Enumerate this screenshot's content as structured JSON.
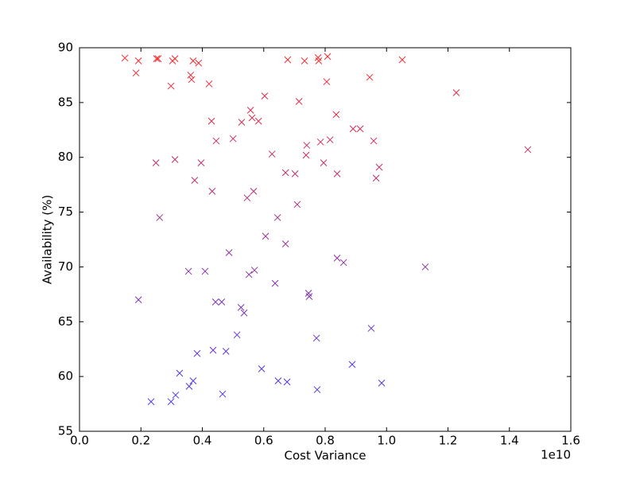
{
  "chart_data": {
    "type": "scatter",
    "xlabel": "Cost Variance",
    "ylabel": "Availability (%)",
    "x_offset_label": "1e10",
    "x": [
      0.148,
      0.192,
      0.184,
      0.251,
      0.256,
      0.303,
      0.311,
      0.298,
      0.37,
      0.388,
      0.362,
      0.365,
      0.422,
      0.678,
      0.733,
      0.777,
      0.779,
      0.808,
      1.051,
      0.945,
      0.805,
      1.227,
      0.603,
      0.715,
      0.557,
      0.528,
      0.562,
      0.583,
      0.43,
      0.836,
      0.891,
      0.914,
      0.5,
      0.445,
      0.74,
      0.785,
      0.816,
      0.958,
      1.46,
      0.627,
      0.738,
      0.249,
      0.311,
      0.396,
      0.795,
      0.976,
      0.671,
      0.702,
      0.839,
      0.375,
      0.966,
      0.432,
      0.567,
      0.546,
      0.261,
      0.645,
      0.709,
      0.606,
      0.671,
      0.487,
      0.839,
      0.86,
      1.126,
      0.355,
      0.409,
      0.57,
      0.552,
      0.637,
      0.192,
      0.746,
      0.748,
      0.443,
      0.463,
      0.526,
      0.536,
      0.95,
      0.772,
      0.513,
      0.435,
      0.477,
      0.383,
      0.888,
      0.593,
      0.326,
      0.647,
      0.676,
      0.37,
      0.357,
      0.984,
      0.774,
      0.466,
      0.313,
      0.233,
      0.298
    ],
    "y": [
      89.06,
      88.8,
      87.7,
      89.0,
      89.0,
      88.8,
      89.0,
      86.5,
      88.8,
      88.6,
      87.5,
      87.1,
      86.7,
      88.9,
      88.8,
      89.1,
      88.8,
      89.2,
      88.9,
      87.3,
      86.9,
      85.9,
      85.6,
      85.1,
      84.3,
      83.2,
      83.6,
      83.3,
      83.3,
      83.9,
      82.6,
      82.6,
      81.7,
      81.5,
      81.1,
      81.4,
      81.6,
      81.5,
      80.7,
      80.3,
      80.2,
      79.5,
      79.8,
      79.5,
      79.5,
      79.1,
      78.6,
      78.5,
      78.5,
      77.9,
      78.1,
      76.9,
      76.9,
      76.3,
      74.5,
      74.5,
      75.7,
      72.8,
      72.1,
      71.3,
      70.8,
      70.4,
      70.0,
      69.6,
      69.6,
      69.7,
      69.3,
      68.5,
      67.0,
      67.6,
      67.3,
      66.8,
      66.8,
      66.3,
      65.8,
      64.4,
      63.5,
      63.8,
      62.4,
      62.3,
      62.1,
      61.1,
      60.7,
      60.3,
      59.6,
      59.5,
      59.6,
      59.1,
      59.4,
      58.8,
      58.4,
      58.3,
      57.7,
      57.7
    ],
    "colormap": [
      "#3a3aff",
      "#ff2a2a"
    ],
    "xlim": [
      0,
      1.6
    ],
    "xticks": [
      {
        "value": 0,
        "label": "0.0"
      },
      0.2,
      0.4,
      0.6,
      0.8,
      {
        "value": 1,
        "label": "1.0"
      },
      1.2,
      1.4,
      1.6
    ],
    "ylim": [
      55,
      90
    ],
    "yticks": [
      55,
      60,
      65,
      70,
      75,
      80,
      85,
      90
    ]
  }
}
